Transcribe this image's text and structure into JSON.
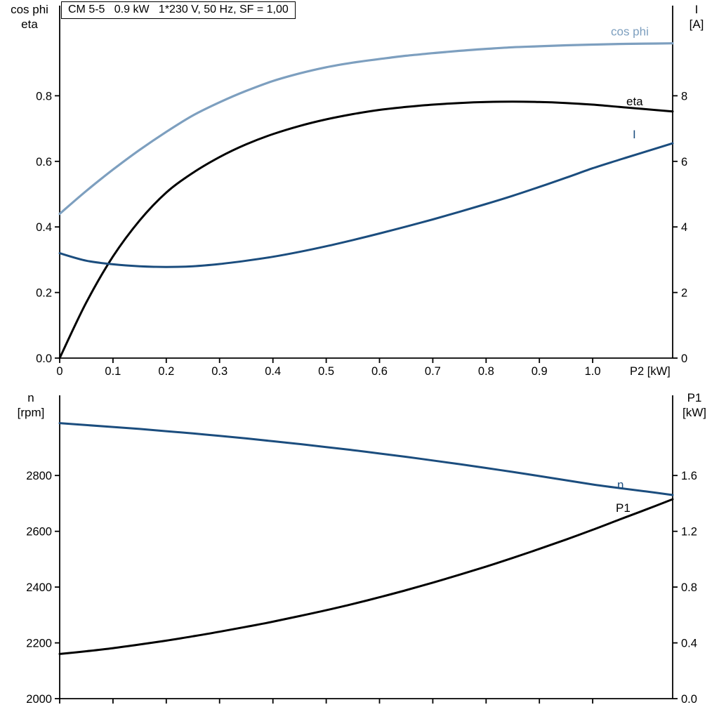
{
  "palette": {
    "light_blue": "#7d9fbf",
    "dark_blue": "#1b4d7e",
    "black": "#000000"
  },
  "chart_data": [
    {
      "type": "line",
      "title": "CM 5-5   0.9 kW   1*230 V, 50 Hz, SF = 1,00",
      "x_label": "P2 [kW]",
      "x_range": [
        0,
        1.15
      ],
      "x_ticks": [
        0,
        0.1,
        0.2,
        0.3,
        0.4,
        0.5,
        0.6,
        0.7,
        0.8,
        0.9,
        1.0
      ],
      "x_tick_labels": [
        "0",
        "0.1",
        "0.2",
        "0.3",
        "0.4",
        "0.5",
        "0.6",
        "0.7",
        "0.8",
        "0.9",
        "1.0"
      ],
      "left_axis": {
        "label_lines": [
          "cos phi",
          "eta"
        ],
        "range": [
          0,
          0.97
        ],
        "ticks": [
          0,
          0.2,
          0.4,
          0.6,
          0.8
        ],
        "tick_labels": [
          "0.0",
          "0.2",
          "0.4",
          "0.6",
          "0.8"
        ]
      },
      "right_axis": {
        "label_lines": [
          "I",
          "[A]"
        ],
        "range": [
          0,
          9.7
        ],
        "ticks": [
          0,
          2,
          4,
          6,
          8
        ],
        "tick_labels": [
          "0",
          "2",
          "4",
          "6",
          "8"
        ]
      },
      "x": [
        0,
        0.05,
        0.1,
        0.15,
        0.2,
        0.25,
        0.3,
        0.35,
        0.4,
        0.45,
        0.5,
        0.55,
        0.6,
        0.65,
        0.7,
        0.75,
        0.8,
        0.85,
        0.9,
        0.95,
        1.0,
        1.05,
        1.1,
        1.15
      ],
      "series": [
        {
          "name": "cos phi",
          "axis": "left",
          "color": "light_blue",
          "width": 3.2,
          "values": [
            0.44,
            0.51,
            0.575,
            0.635,
            0.69,
            0.74,
            0.78,
            0.815,
            0.845,
            0.868,
            0.887,
            0.901,
            0.912,
            0.922,
            0.93,
            0.937,
            0.943,
            0.948,
            0.951,
            0.954,
            0.956,
            0.958,
            0.959,
            0.96
          ],
          "label_dx": -88,
          "label_dy": -11
        },
        {
          "name": "eta",
          "axis": "left",
          "color": "black",
          "width": 3,
          "values": [
            0,
            0.17,
            0.31,
            0.42,
            0.505,
            0.565,
            0.613,
            0.652,
            0.683,
            0.708,
            0.728,
            0.744,
            0.757,
            0.766,
            0.773,
            0.778,
            0.781,
            0.782,
            0.781,
            0.778,
            0.773,
            0.766,
            0.759,
            0.752
          ],
          "label_dx": -66,
          "label_dy": -9
        },
        {
          "name": "I",
          "axis": "right",
          "color": "dark_blue",
          "width": 3,
          "values": [
            3.2,
            2.97,
            2.86,
            2.8,
            2.78,
            2.8,
            2.87,
            2.97,
            3.09,
            3.24,
            3.41,
            3.6,
            3.8,
            4.01,
            4.23,
            4.46,
            4.7,
            4.95,
            5.22,
            5.5,
            5.79,
            6.05,
            6.3,
            6.55
          ],
          "label_dx": -57,
          "label_dy": -7
        }
      ]
    },
    {
      "type": "line",
      "title": "",
      "x_label": "",
      "x_range": [
        0,
        1.15
      ],
      "x_ticks": [
        0,
        0.1,
        0.2,
        0.3,
        0.4,
        0.5,
        0.6,
        0.7,
        0.8,
        0.9,
        1.0
      ],
      "x_tick_labels": [],
      "left_axis": {
        "label_lines": [
          "n",
          "[rpm]"
        ],
        "range": [
          2000,
          3070
        ],
        "ticks": [
          2000,
          2200,
          2400,
          2600,
          2800
        ],
        "tick_labels": [
          "2000",
          "2200",
          "2400",
          "2600",
          "2800"
        ]
      },
      "right_axis": {
        "label_lines": [
          "P1",
          "[kW]"
        ],
        "range": [
          0,
          2.14
        ],
        "ticks": [
          0,
          0.4,
          0.8,
          1.2,
          1.6
        ],
        "tick_labels": [
          "0.0",
          "0.4",
          "0.8",
          "1.2",
          "1.6"
        ]
      },
      "x": [
        0,
        0.05,
        0.1,
        0.15,
        0.2,
        0.25,
        0.3,
        0.35,
        0.4,
        0.45,
        0.5,
        0.55,
        0.6,
        0.65,
        0.7,
        0.75,
        0.8,
        0.85,
        0.9,
        0.95,
        1.0,
        1.05,
        1.1,
        1.15
      ],
      "series": [
        {
          "name": "n",
          "axis": "left",
          "color": "dark_blue",
          "width": 3,
          "values": [
            2988,
            2981,
            2974,
            2967,
            2959,
            2951,
            2942,
            2933,
            2923,
            2913,
            2902,
            2891,
            2879,
            2867,
            2854,
            2841,
            2827,
            2813,
            2798,
            2783,
            2768,
            2755,
            2743,
            2730
          ],
          "label_dx": -79,
          "label_dy": -9
        },
        {
          "name": "P1",
          "axis": "right",
          "color": "black",
          "width": 3,
          "values": [
            0.32,
            0.34,
            0.362,
            0.388,
            0.416,
            0.447,
            0.48,
            0.515,
            0.552,
            0.592,
            0.634,
            0.679,
            0.727,
            0.778,
            0.832,
            0.888,
            0.947,
            1.009,
            1.074,
            1.141,
            1.211,
            1.284,
            1.356,
            1.43
          ],
          "label_dx": -81,
          "label_dy": 18
        }
      ]
    }
  ]
}
